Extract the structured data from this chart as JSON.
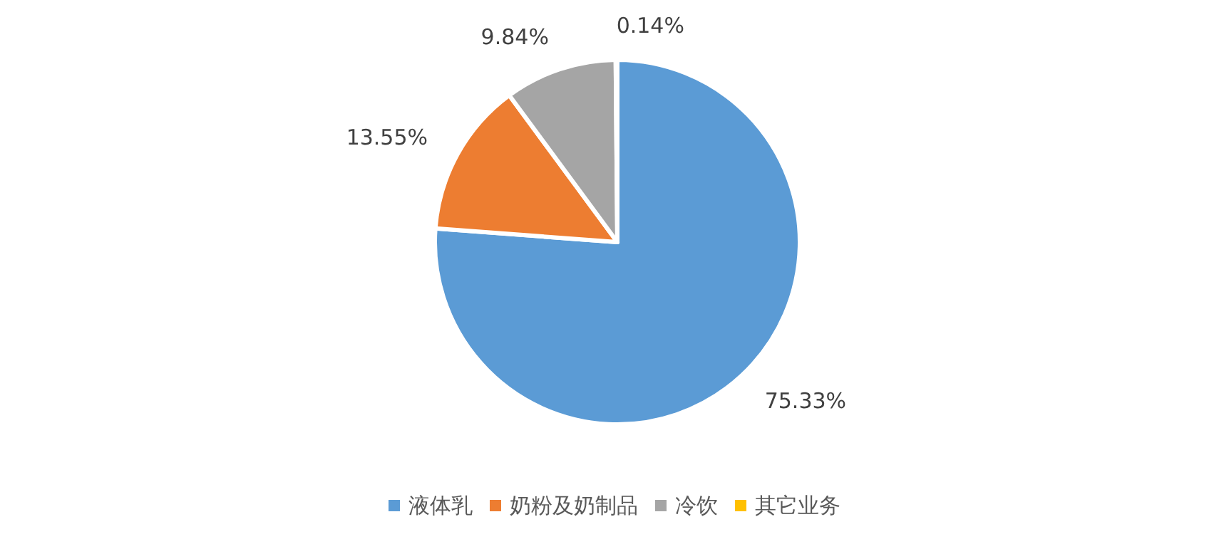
{
  "chart_data": {
    "type": "pie",
    "categories": [
      "液体乳",
      "奶粉及奶制品",
      "冷饮",
      "其它业务"
    ],
    "values": [
      75.33,
      13.55,
      9.84,
      0.14
    ],
    "colors": [
      "#5b9bd5",
      "#ed7d31",
      "#a5a5a5",
      "#ffc000"
    ],
    "value_labels": [
      "75.33%",
      "13.55%",
      "9.84%",
      "0.14%"
    ],
    "legend": "bottom"
  }
}
